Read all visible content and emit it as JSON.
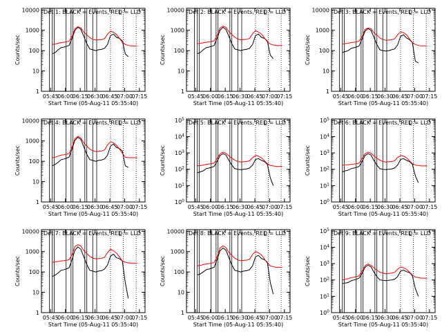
{
  "common": {
    "ylabel": "Counts/sec",
    "xlabel": "Start Time (05-Aug-11 05:35:40)",
    "x_ticks": [
      "05:45",
      "06:00",
      "06:15",
      "06:30",
      "06:45",
      "07:00",
      "07:15"
    ],
    "corner_mark": "L"
  },
  "colors": {
    "events": "#000000",
    "lld": "#ff0000",
    "axes": "#000000"
  },
  "chart_data": [
    {
      "type": "line",
      "title": "Det 1: BLACK = Events, RED = LLD",
      "ytick_style": "plain",
      "yticks": [
        1,
        10,
        100,
        1000,
        10000
      ],
      "ylim": [
        1,
        12000
      ],
      "x_minutes_since_0535": [
        11,
        14,
        17,
        20,
        23,
        25,
        28,
        31,
        34,
        37,
        40,
        43,
        46,
        49,
        52,
        55,
        58,
        61,
        64,
        67,
        70,
        73,
        76,
        79,
        82,
        85,
        88,
        91,
        94,
        97
      ],
      "series": [
        {
          "name": "BLACK = Events",
          "values": [
            70,
            80,
            110,
            140,
            150,
            160,
            180,
            400,
            1000,
            1400,
            1100,
            500,
            220,
            120,
            110,
            100,
            110,
            115,
            130,
            200,
            550,
            650,
            450,
            400,
            300,
            70,
            50,
            null,
            null,
            null
          ]
        },
        {
          "name": "RED = LLD",
          "values": [
            200,
            210,
            230,
            250,
            260,
            270,
            290,
            500,
            1200,
            1500,
            1300,
            800,
            600,
            430,
            360,
            330,
            340,
            350,
            390,
            650,
            900,
            800,
            620,
            400,
            260,
            200,
            180,
            170,
            170,
            170
          ]
        }
      ]
    },
    {
      "type": "line",
      "title": "Det 2: BLACK = Events, RED = LLD",
      "ytick_style": "plain",
      "yticks": [
        1,
        10,
        100,
        1000,
        10000
      ],
      "ylim": [
        1,
        12000
      ],
      "x_minutes_since_0535": [
        11,
        14,
        17,
        20,
        23,
        25,
        28,
        31,
        34,
        37,
        40,
        43,
        46,
        49,
        52,
        55,
        58,
        61,
        64,
        67,
        70,
        73,
        76,
        79,
        82,
        85,
        88,
        91,
        94,
        97
      ],
      "series": [
        {
          "name": "BLACK = Events",
          "values": [
            70,
            80,
            110,
            140,
            150,
            160,
            180,
            400,
            1000,
            1400,
            1100,
            500,
            220,
            120,
            110,
            100,
            110,
            115,
            130,
            200,
            550,
            650,
            450,
            400,
            300,
            60,
            40,
            null,
            null,
            null
          ]
        },
        {
          "name": "RED = LLD",
          "values": [
            220,
            230,
            240,
            260,
            270,
            280,
            300,
            550,
            1300,
            1600,
            1400,
            850,
            620,
            450,
            370,
            340,
            350,
            360,
            400,
            680,
            950,
            820,
            640,
            420,
            270,
            210,
            190,
            180,
            180,
            180
          ]
        }
      ]
    },
    {
      "type": "line",
      "title": "Det 3: BLACK = Events, RED = LLD",
      "ytick_style": "plain",
      "yticks": [
        1,
        10,
        100,
        1000,
        10000
      ],
      "ylim": [
        1,
        12000
      ],
      "x_minutes_since_0535": [
        11,
        14,
        17,
        20,
        23,
        25,
        28,
        31,
        34,
        37,
        40,
        43,
        46,
        49,
        52,
        55,
        58,
        61,
        64,
        67,
        70,
        73,
        76,
        79,
        82,
        85,
        88,
        91,
        94,
        97
      ],
      "series": [
        {
          "name": "BLACK = Events",
          "values": [
            80,
            90,
            100,
            130,
            140,
            150,
            170,
            380,
            900,
            1200,
            1000,
            450,
            200,
            110,
            100,
            95,
            100,
            110,
            120,
            190,
            500,
            600,
            420,
            350,
            250,
            30,
            25,
            null,
            null,
            null
          ]
        },
        {
          "name": "RED = LLD",
          "values": [
            210,
            220,
            230,
            250,
            260,
            270,
            290,
            500,
            1100,
            1300,
            1200,
            750,
            580,
            420,
            350,
            320,
            330,
            340,
            380,
            600,
            850,
            760,
            600,
            380,
            250,
            200,
            180,
            170,
            170,
            170
          ]
        }
      ]
    },
    {
      "type": "line",
      "title": "Det 4: BLACK = Events, RED = LLD",
      "ytick_style": "plain",
      "yticks": [
        1,
        10,
        100,
        1000,
        10000
      ],
      "ylim": [
        1,
        12000
      ],
      "x_minutes_since_0535": [
        11,
        14,
        17,
        20,
        23,
        25,
        28,
        31,
        34,
        37,
        40,
        43,
        46,
        49,
        52,
        55,
        58,
        61,
        64,
        67,
        70,
        73,
        76,
        79,
        82,
        85,
        88,
        91,
        94,
        97
      ],
      "series": [
        {
          "name": "BLACK = Events",
          "values": [
            60,
            70,
            90,
            120,
            130,
            140,
            160,
            400,
            1100,
            1500,
            1200,
            500,
            220,
            120,
            110,
            100,
            110,
            115,
            130,
            200,
            560,
            700,
            480,
            420,
            320,
            60,
            50,
            null,
            null,
            null
          ]
        },
        {
          "name": "RED = LLD",
          "values": [
            150,
            160,
            180,
            200,
            210,
            220,
            240,
            500,
            1300,
            1700,
            1400,
            800,
            560,
            400,
            330,
            300,
            310,
            320,
            360,
            640,
            920,
            800,
            620,
            400,
            250,
            160,
            150,
            150,
            150,
            150
          ]
        }
      ]
    },
    {
      "type": "line",
      "title": "Det 5: BLACK = Events, RED = LLD",
      "ytick_style": "exponent",
      "yticks": [
        1,
        10,
        100,
        1000,
        10000,
        100000
      ],
      "ylim": [
        1,
        120000
      ],
      "x_minutes_since_0535": [
        11,
        14,
        17,
        20,
        23,
        25,
        28,
        31,
        34,
        37,
        40,
        43,
        46,
        49,
        52,
        55,
        58,
        61,
        64,
        67,
        70,
        73,
        76,
        79,
        82,
        85,
        88,
        91,
        94,
        97
      ],
      "series": [
        {
          "name": "BLACK = Events",
          "values": [
            60,
            70,
            80,
            110,
            120,
            130,
            150,
            300,
            700,
            900,
            750,
            350,
            180,
            110,
            100,
            95,
            100,
            105,
            120,
            180,
            400,
            450,
            350,
            300,
            200,
            30,
            10,
            null,
            null,
            null
          ]
        },
        {
          "name": "RED = LLD",
          "values": [
            160,
            170,
            180,
            200,
            210,
            220,
            240,
            450,
            900,
            1100,
            950,
            650,
            480,
            360,
            300,
            280,
            290,
            300,
            330,
            520,
            700,
            640,
            500,
            330,
            220,
            170,
            160,
            150,
            150,
            150
          ]
        }
      ]
    },
    {
      "type": "line",
      "title": "Det 6: BLACK = Events, RED = LLD",
      "ytick_style": "exponent",
      "yticks": [
        1,
        10,
        100,
        1000,
        10000,
        100000
      ],
      "ylim": [
        1,
        120000
      ],
      "x_minutes_since_0535": [
        11,
        14,
        17,
        20,
        23,
        25,
        28,
        31,
        34,
        37,
        40,
        43,
        46,
        49,
        52,
        55,
        58,
        61,
        64,
        67,
        70,
        73,
        76,
        79,
        82,
        85,
        88,
        91,
        94,
        97
      ],
      "series": [
        {
          "name": "BLACK = Events",
          "values": [
            70,
            80,
            90,
            110,
            120,
            130,
            150,
            300,
            700,
            900,
            750,
            350,
            180,
            110,
            100,
            95,
            100,
            105,
            120,
            180,
            400,
            450,
            350,
            300,
            200,
            40,
            15,
            null,
            null,
            null
          ]
        },
        {
          "name": "RED = LLD",
          "values": [
            180,
            185,
            190,
            200,
            210,
            220,
            240,
            450,
            900,
            1100,
            950,
            650,
            480,
            360,
            300,
            280,
            290,
            300,
            330,
            520,
            700,
            640,
            500,
            330,
            220,
            180,
            170,
            160,
            160,
            160
          ]
        }
      ]
    },
    {
      "type": "line",
      "title": "Det 7: BLACK = Events, RED = LLD",
      "ytick_style": "plain",
      "yticks": [
        1,
        10,
        100,
        1000,
        10000
      ],
      "ylim": [
        1,
        12000
      ],
      "x_minutes_since_0535": [
        11,
        14,
        17,
        20,
        23,
        25,
        28,
        31,
        34,
        37,
        40,
        43,
        46,
        49,
        52,
        55,
        58,
        61,
        64,
        67,
        70,
        73,
        76,
        79,
        82,
        85,
        88,
        91,
        94,
        97
      ],
      "series": [
        {
          "name": "BLACK = Events",
          "values": [
            60,
            70,
            90,
            120,
            130,
            140,
            160,
            400,
            1200,
            1700,
            1300,
            550,
            230,
            120,
            110,
            100,
            110,
            115,
            140,
            220,
            600,
            750,
            500,
            450,
            350,
            30,
            5,
            null,
            null,
            null
          ]
        },
        {
          "name": "RED = LLD",
          "values": [
            300,
            310,
            330,
            350,
            360,
            370,
            400,
            700,
            1800,
            2200,
            1900,
            1100,
            800,
            580,
            480,
            440,
            450,
            470,
            520,
            900,
            1300,
            1100,
            850,
            550,
            350,
            300,
            280,
            270,
            270,
            270
          ]
        }
      ]
    },
    {
      "type": "line",
      "title": "Det 8: BLACK = Events, RED = LLD",
      "ytick_style": "plain",
      "yticks": [
        1,
        10,
        100,
        1000,
        10000
      ],
      "ylim": [
        1,
        12000
      ],
      "x_minutes_since_0535": [
        11,
        14,
        17,
        20,
        23,
        25,
        28,
        31,
        34,
        37,
        40,
        43,
        46,
        49,
        52,
        55,
        58,
        61,
        64,
        67,
        70,
        73,
        76,
        79,
        82,
        85,
        88,
        91,
        94,
        97
      ],
      "series": [
        {
          "name": "BLACK = Events",
          "values": [
            70,
            80,
            100,
            130,
            140,
            150,
            170,
            400,
            1100,
            1500,
            1200,
            500,
            220,
            120,
            110,
            100,
            110,
            115,
            130,
            200,
            560,
            650,
            460,
            400,
            300,
            30,
            8,
            null,
            null,
            null
          ]
        },
        {
          "name": "RED = LLD",
          "values": [
            200,
            210,
            230,
            250,
            260,
            270,
            290,
            550,
            1500,
            1900,
            1600,
            900,
            650,
            470,
            390,
            360,
            370,
            380,
            420,
            720,
            1000,
            880,
            680,
            430,
            270,
            200,
            180,
            170,
            170,
            170
          ]
        }
      ]
    },
    {
      "type": "line",
      "title": "Det 9: BLACK = Events, RED = LLD",
      "ytick_style": "exponent",
      "yticks": [
        1,
        10,
        100,
        1000,
        10000,
        100000
      ],
      "ylim": [
        1,
        120000
      ],
      "x_minutes_since_0535": [
        11,
        14,
        17,
        20,
        23,
        25,
        28,
        31,
        34,
        37,
        40,
        43,
        46,
        49,
        52,
        55,
        58,
        61,
        64,
        67,
        70,
        73,
        76,
        79,
        82,
        85,
        88,
        91,
        94,
        97
      ],
      "series": [
        {
          "name": "BLACK = Events",
          "values": [
            60,
            65,
            70,
            90,
            100,
            110,
            130,
            250,
            600,
            800,
            650,
            300,
            160,
            100,
            95,
            90,
            95,
            100,
            110,
            160,
            350,
            400,
            320,
            280,
            180,
            30,
            10,
            null,
            null,
            null
          ]
        },
        {
          "name": "RED = LLD",
          "values": [
            100,
            110,
            120,
            140,
            150,
            160,
            180,
            350,
            750,
            950,
            800,
            550,
            400,
            300,
            260,
            240,
            250,
            260,
            290,
            450,
            620,
            560,
            440,
            300,
            200,
            150,
            140,
            130,
            130,
            130
          ]
        }
      ]
    }
  ]
}
